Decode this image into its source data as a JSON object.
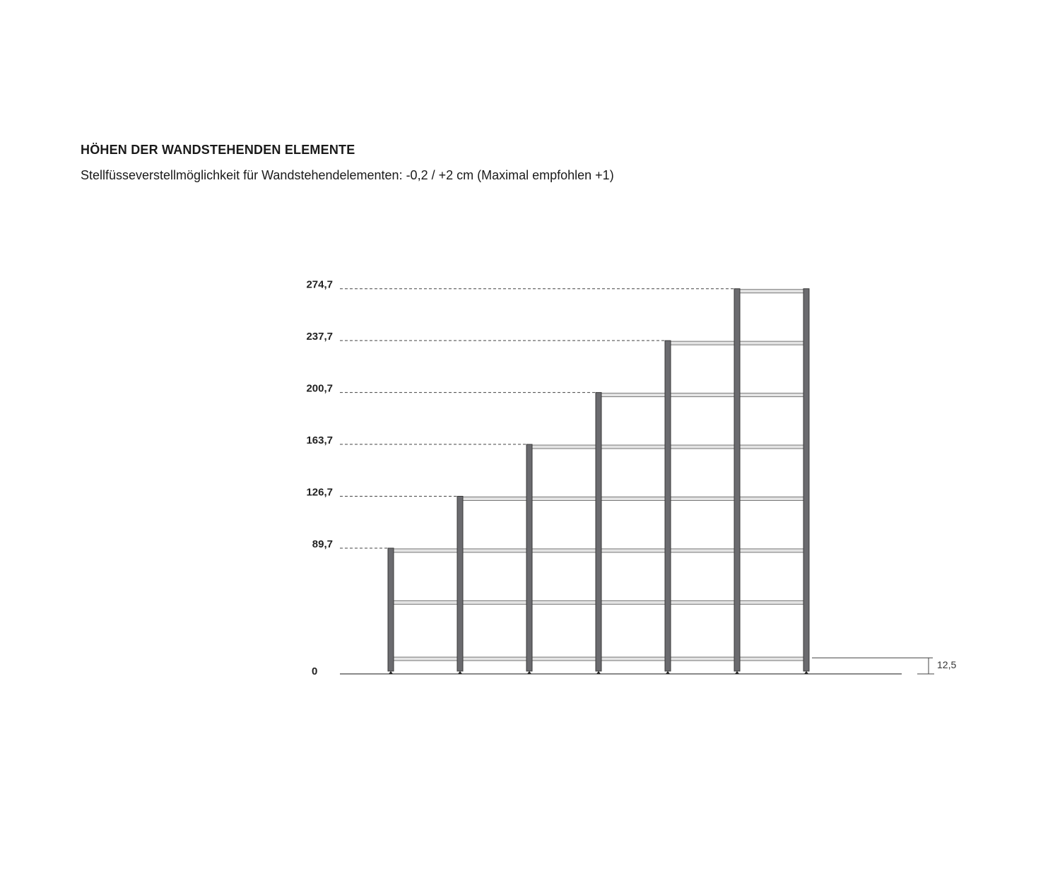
{
  "header": {
    "title": "HÖHEN DER WANDSTEHENDEN ELEMENTE",
    "subtitle": "Stellfüsseverstellmöglichkeit für Wandstehendelementen: -0,2 / +2 cm (Maximal empfohlen +1)"
  },
  "diagram": {
    "zero_label": "0",
    "element_heights": [
      89.7,
      126.7,
      163.7,
      200.7,
      237.7,
      274.7
    ],
    "height_labels": [
      "89,7",
      "126,7",
      "163,7",
      "200,7",
      "237,7",
      "274,7"
    ],
    "bottom_shelf_height": 12.5,
    "bottom_shelf_label": "12,5",
    "shelf_spacing": 37,
    "colors": {
      "post": "#6b6b6f",
      "shelf": "#e4e4e4",
      "line": "#444444"
    }
  }
}
